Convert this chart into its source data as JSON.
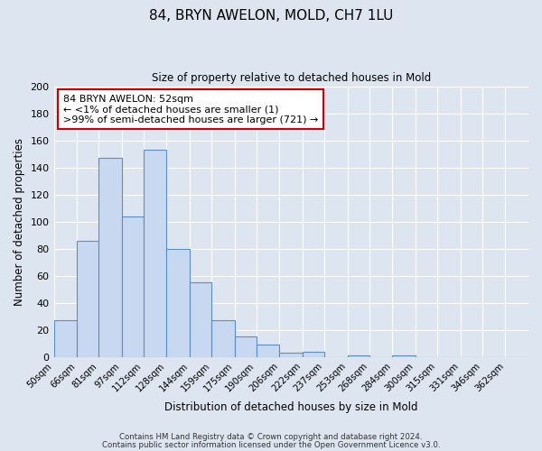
{
  "title": "84, BRYN AWELON, MOLD, CH7 1LU",
  "subtitle": "Size of property relative to detached houses in Mold",
  "xlabel": "Distribution of detached houses by size in Mold",
  "ylabel": "Number of detached properties",
  "bar_values": [
    27,
    86,
    147,
    104,
    153,
    80,
    55,
    27,
    15,
    9,
    3,
    4,
    0,
    1,
    0,
    1,
    0,
    0,
    0,
    0,
    0
  ],
  "bar_labels": [
    "50sqm",
    "66sqm",
    "81sqm",
    "97sqm",
    "112sqm",
    "128sqm",
    "144sqm",
    "159sqm",
    "175sqm",
    "190sqm",
    "206sqm",
    "222sqm",
    "237sqm",
    "253sqm",
    "268sqm",
    "284sqm",
    "300sqm",
    "315sqm",
    "331sqm",
    "346sqm",
    "362sqm"
  ],
  "bin_edges": [
    50,
    66,
    81,
    97,
    112,
    128,
    144,
    159,
    175,
    190,
    206,
    222,
    237,
    253,
    268,
    284,
    300,
    315,
    331,
    346,
    362,
    378
  ],
  "ylim": [
    0,
    200
  ],
  "yticks": [
    0,
    20,
    40,
    60,
    80,
    100,
    120,
    140,
    160,
    180,
    200
  ],
  "bar_color": "#c8d8f0",
  "bar_edge_color": "#5b8ec4",
  "annotation_line1": "84 BRYN AWELON: 52sqm",
  "annotation_line2": "← <1% of detached houses are smaller (1)",
  "annotation_line3": ">99% of semi-detached houses are larger (721) →",
  "annotation_box_edgecolor": "#cc0000",
  "annotation_box_facecolor": "#ffffff",
  "footer1": "Contains HM Land Registry data © Crown copyright and database right 2024.",
  "footer2": "Contains public sector information licensed under the Open Government Licence v3.0.",
  "background_color": "#dde5f0",
  "plot_background_color": "#dde5f0"
}
